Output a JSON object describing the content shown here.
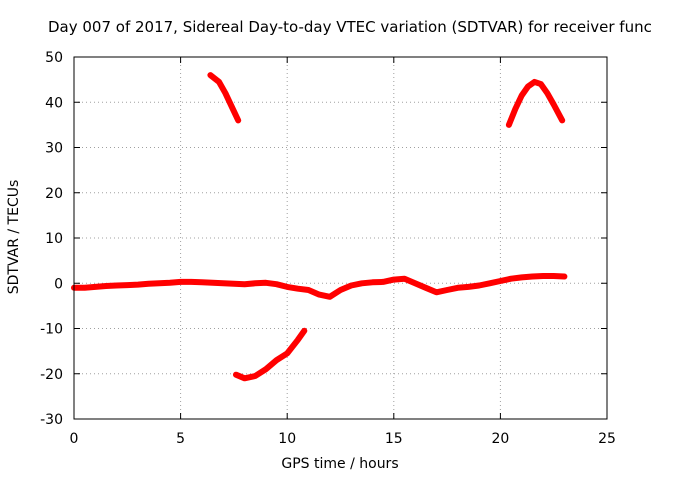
{
  "chart_data": {
    "type": "line",
    "title": "Day 007 of 2017, Sidereal Day-to-day VTEC variation (SDTVAR) for receiver func",
    "xlabel": "GPS time / hours",
    "ylabel": "SDTVAR / TECUs",
    "xlim": [
      0,
      25
    ],
    "ylim": [
      -30,
      50
    ],
    "xticks": [
      0,
      5,
      10,
      15,
      20,
      25
    ],
    "yticks": [
      -30,
      -20,
      -10,
      0,
      10,
      20,
      30,
      40,
      50
    ],
    "grid": true,
    "series_color": "#ff0000",
    "series": [
      {
        "name": "main",
        "x": [
          0,
          0.5,
          1,
          1.5,
          2,
          2.5,
          3,
          3.5,
          4,
          4.5,
          5,
          5.5,
          6,
          6.5,
          7,
          7.5,
          8,
          8.5,
          9,
          9.5,
          10,
          10.5,
          11,
          11.5,
          12,
          12.5,
          13,
          13.5,
          14,
          14.5,
          15,
          15.5,
          16,
          16.5,
          17,
          17.5,
          18,
          18.5,
          19,
          19.5,
          20,
          20.5,
          21,
          21.5,
          22,
          22.5,
          23
        ],
        "y": [
          -1,
          -1,
          -0.8,
          -0.6,
          -0.5,
          -0.4,
          -0.3,
          -0.1,
          0,
          0.1,
          0.3,
          0.3,
          0.2,
          0.1,
          0,
          -0.1,
          -0.2,
          0,
          0.1,
          -0.2,
          -0.8,
          -1.2,
          -1.5,
          -2.5,
          -3,
          -1.5,
          -0.5,
          0,
          0.2,
          0.3,
          0.8,
          1,
          0,
          -1,
          -2,
          -1.5,
          -1,
          -0.8,
          -0.5,
          0,
          0.5,
          1,
          1.3,
          1.5,
          1.6,
          1.6,
          1.5
        ]
      },
      {
        "name": "arc-top-left",
        "x": [
          6.4,
          6.8,
          7.1,
          7.4,
          7.7
        ],
        "y": [
          46,
          44.5,
          42,
          39,
          36
        ]
      },
      {
        "name": "arc-top-right",
        "x": [
          20.4,
          20.7,
          21,
          21.3,
          21.6,
          21.9,
          22.2,
          22.5,
          22.9
        ],
        "y": [
          35,
          38.5,
          41.5,
          43.5,
          44.5,
          44,
          42,
          39.5,
          36
        ]
      },
      {
        "name": "arc-bottom",
        "x": [
          7.6,
          8,
          8.5,
          9,
          9.5,
          10,
          10.5,
          10.8
        ],
        "y": [
          -20.2,
          -21,
          -20.5,
          -19,
          -17,
          -15.5,
          -12.5,
          -10.5
        ]
      }
    ]
  }
}
